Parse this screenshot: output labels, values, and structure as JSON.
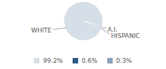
{
  "chart_data": {
    "type": "pie",
    "categories": [
      "WHITE",
      "A.I.",
      "HISPANIC"
    ],
    "values": [
      99.2,
      0.6,
      0.3
    ],
    "value_labels": [
      "99.2%",
      "0.6%",
      "0.3%"
    ],
    "colors": [
      "#d6dfe8",
      "#2c5a80",
      "#8aa2b7"
    ],
    "legend": "bottom"
  }
}
